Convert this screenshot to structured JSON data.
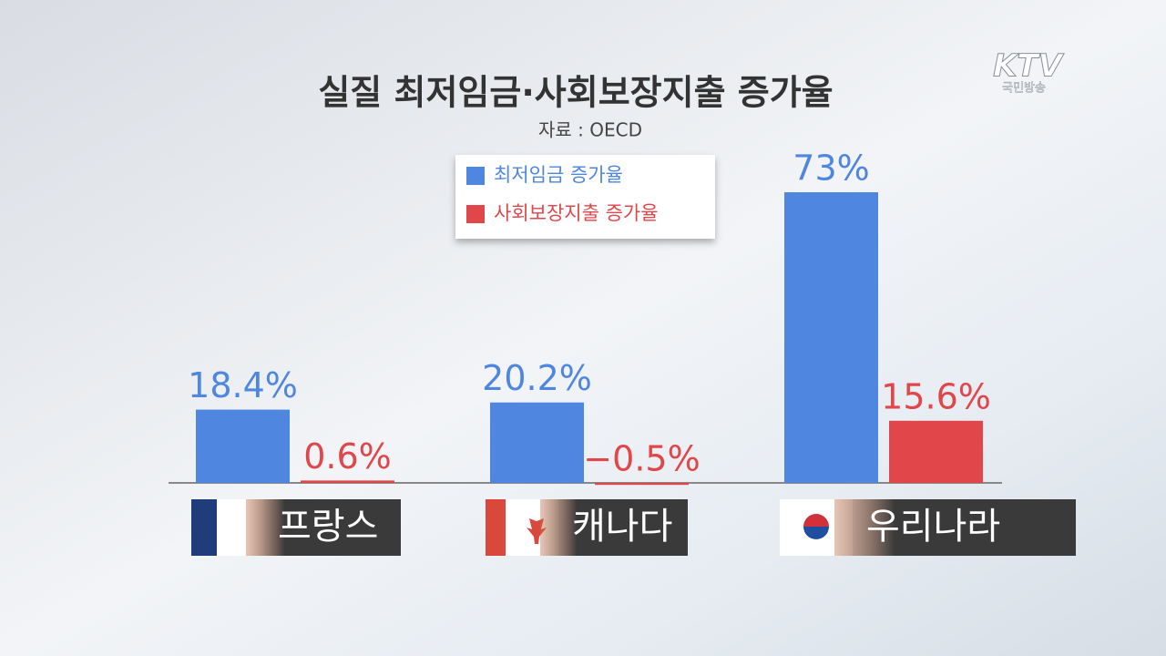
{
  "logo": {
    "text": "KTV",
    "subtext": "국민방송"
  },
  "chart_data": {
    "type": "bar",
    "title": "실질 최저임금·사회보장지출 증가율",
    "subtitle": "자료 : OECD",
    "categories": [
      "프랑스",
      "캐나다",
      "우리나라"
    ],
    "series": [
      {
        "name": "최저임금 증가율",
        "color": "#4f86e0",
        "values": [
          18.4,
          20.2,
          73
        ],
        "value_labels": [
          "18.4%",
          "20.2%",
          "73%"
        ]
      },
      {
        "name": "사회보장지출 증가율",
        "color": "#e0464a",
        "values": [
          0.6,
          -0.5,
          15.6
        ],
        "value_labels": [
          "0.6%",
          "−0.5%",
          "15.6%"
        ]
      }
    ]
  }
}
